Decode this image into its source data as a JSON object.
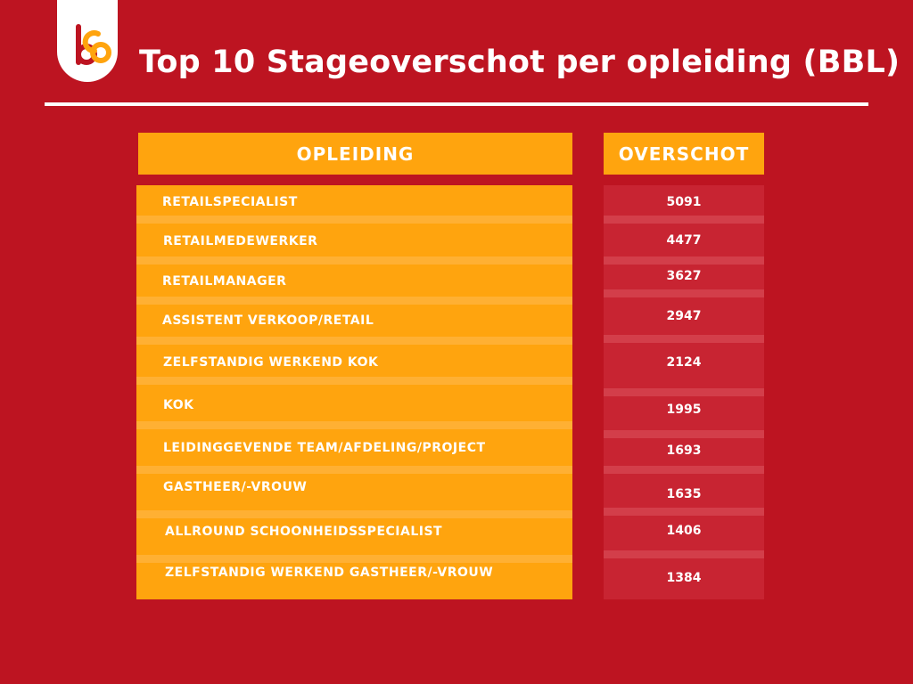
{
  "logo": {
    "icon": "sbb-logo-icon",
    "colors": [
      "#bd1421",
      "#ffa40e"
    ]
  },
  "title": "Top 10 Stageoverschot per opleiding (BBL)",
  "colors": {
    "background": "#bd1421",
    "accent": "#ffa40e",
    "value_column": "#c82432"
  },
  "chart_data": {
    "type": "table",
    "title": "Top 10 Stageoverschot per opleiding (BBL)",
    "columns": [
      "OPLEIDING",
      "OVERSCHOT"
    ],
    "rows": [
      {
        "opleiding": "RETAILSPECIALIST",
        "overschot": 5091
      },
      {
        "opleiding": "RETAILMEDEWERKER",
        "overschot": 4477
      },
      {
        "opleiding": "RETAILMANAGER",
        "overschot": 3627
      },
      {
        "opleiding": "ASSISTENT VERKOOP/RETAIL",
        "overschot": 2947
      },
      {
        "opleiding": "ZELFSTANDIG WERKEND KOK",
        "overschot": 2124
      },
      {
        "opleiding": "KOK",
        "overschot": 1995
      },
      {
        "opleiding": "LEIDINGGEVENDE TEAM/AFDELING/PROJECT",
        "overschot": 1693
      },
      {
        "opleiding": "GASTHEER/-VROUW",
        "overschot": 1635
      },
      {
        "opleiding": "ALLROUND SCHOONHEIDSSPECIALIST",
        "overschot": 1406
      },
      {
        "opleiding": "ZELFSTANDIG WERKEND GASTHEER/-VROUW",
        "overschot": 1384
      }
    ]
  }
}
